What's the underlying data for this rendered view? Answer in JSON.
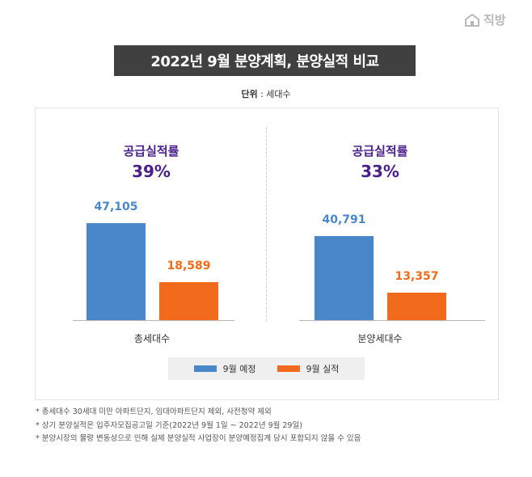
{
  "brand": {
    "name": "직방"
  },
  "title": "2022년 9월 분양계획, 분양실적 비교",
  "unit": {
    "label": "단위",
    "value": " : 세대수"
  },
  "colors": {
    "plan": "#4a87c9",
    "actual": "#f26a1b",
    "rate": "#4a1f8c",
    "title_bg": "#404040"
  },
  "chart_data": {
    "type": "bar",
    "title": "2022년 9월 분양계획, 분양실적 비교",
    "unit": "세대수",
    "categories": [
      "총세대수",
      "분양세대수"
    ],
    "series": [
      {
        "name": "9월 예정",
        "values": [
          47105,
          40791
        ]
      },
      {
        "name": "9월 실적",
        "values": [
          18589,
          13357
        ]
      }
    ],
    "value_labels": [
      [
        "47,105",
        "18,589"
      ],
      [
        "40,791",
        "13,357"
      ]
    ],
    "rates": [
      {
        "label": "공급실적률",
        "value": "39%"
      },
      {
        "label": "공급실적률",
        "value": "33%"
      }
    ],
    "legend_position": "bottom",
    "grid": false
  },
  "legend": [
    {
      "label": "9월 예정"
    },
    {
      "label": "9월 실적"
    }
  ],
  "notes": [
    "* 총세대수 30세대 미만 아파트단지, 임대아파트단지 제외, 사전청약 제외",
    "* 상기 분양실적은 입주자모집공고일 기준(2022년 9월 1일 ~ 2022년 9월 29일)",
    "* 분양시장의 물량 변동성으로 인해 실제 분양실적 사업장이 분양예정집계 당시 포함되지 않을 수 있음"
  ]
}
